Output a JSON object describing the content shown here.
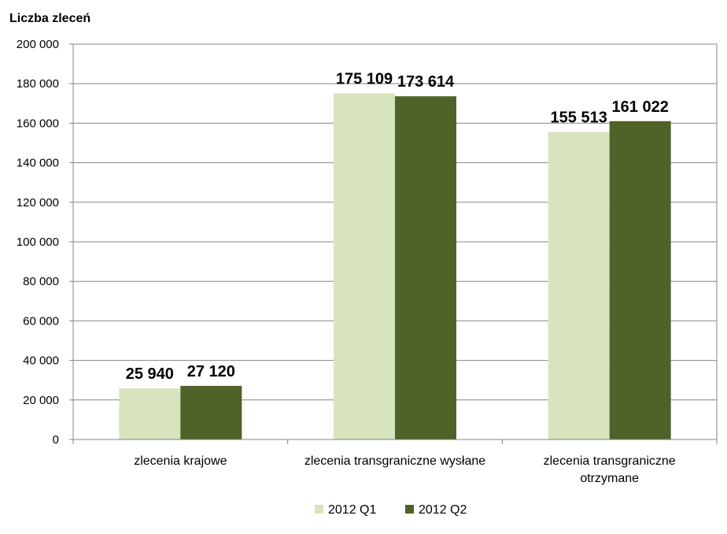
{
  "chart_data": {
    "type": "bar",
    "ylabel": "Liczba zleceń",
    "categories": [
      [
        "zlecenia krajowe"
      ],
      [
        "zlecenia transgraniczne wysłane"
      ],
      [
        "zlecenia transgraniczne",
        "otrzymane"
      ]
    ],
    "series": [
      {
        "name": "2012 Q1",
        "color": "#d7e4bd",
        "values": [
          25940,
          175109,
          155513
        ],
        "labels": [
          "25 940",
          "175 109",
          "155 513"
        ]
      },
      {
        "name": "2012 Q2",
        "color": "#4f6228",
        "values": [
          27120,
          173614,
          161022
        ],
        "labels": [
          "27 120",
          "173 614",
          "161 022"
        ]
      }
    ],
    "ylim": [
      0,
      200000
    ],
    "yticks": [
      0,
      20000,
      40000,
      60000,
      80000,
      100000,
      120000,
      140000,
      160000,
      180000,
      200000
    ],
    "ytick_labels": [
      "0",
      "20 000",
      "40 000",
      "60 000",
      "80 000",
      "100 000",
      "120 000",
      "140 000",
      "160 000",
      "180 000",
      "200 000"
    ],
    "grid": true,
    "legend_position": "bottom"
  }
}
